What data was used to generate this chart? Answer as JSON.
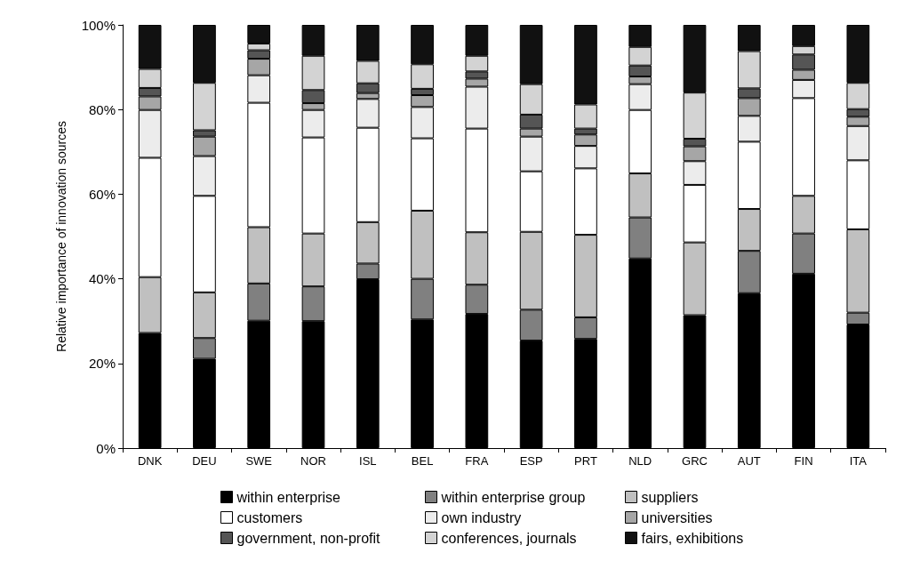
{
  "chart_data": {
    "type": "bar",
    "stacked": true,
    "ylabel": "Relative importance of innovation sources",
    "categories": [
      "DNK",
      "DEU",
      "SWE",
      "NOR",
      "ISL",
      "BEL",
      "FRA",
      "ESP",
      "PRT",
      "NLD",
      "GRC",
      "AUT",
      "FIN",
      "ITA"
    ],
    "ylim": [
      0,
      100
    ],
    "yticks": [
      {
        "value": 0,
        "label": "0%"
      },
      {
        "value": 20,
        "label": "20%"
      },
      {
        "value": 40,
        "label": "40%"
      },
      {
        "value": 60,
        "label": "60%"
      },
      {
        "value": 80,
        "label": "80%"
      },
      {
        "value": 100,
        "label": "100%"
      }
    ],
    "grid": false,
    "legend": "bottom",
    "series": [
      {
        "name": "within enterprise",
        "color": "#000000",
        "values": [
          27.2,
          21.1,
          30.1,
          30.0,
          39.9,
          30.4,
          31.7,
          25.4,
          25.8,
          44.8,
          31.4,
          36.6,
          41.2,
          29.2
        ]
      },
      {
        "name": "within enterprise group",
        "color": "#808080",
        "values": [
          null,
          4.9,
          8.8,
          8.2,
          3.7,
          9.6,
          6.9,
          7.3,
          5.1,
          9.7,
          null,
          10.0,
          9.5,
          2.8
        ]
      },
      {
        "name": "suppliers",
        "color": "#c0c0c0",
        "values": [
          13.2,
          10.8,
          13.3,
          12.5,
          9.8,
          16.1,
          12.4,
          18.4,
          19.5,
          10.4,
          17.2,
          9.9,
          8.9,
          19.7
        ]
      },
      {
        "name": "customers",
        "color": "#ffffff",
        "values": [
          28.2,
          22.8,
          29.4,
          22.7,
          22.3,
          17.1,
          24.5,
          14.3,
          15.7,
          15.0,
          13.6,
          15.9,
          23.1,
          16.3
        ]
      },
      {
        "name": "own industry",
        "color": "#ececec",
        "values": [
          11.3,
          9.4,
          6.5,
          6.5,
          6.8,
          7.4,
          9.9,
          8.2,
          5.3,
          6.1,
          5.6,
          6.1,
          4.3,
          8.1
        ]
      },
      {
        "name": "universities",
        "color": "#a6a6a6",
        "values": [
          3.2,
          4.6,
          3.9,
          1.6,
          1.4,
          2.8,
          1.9,
          1.9,
          2.7,
          1.8,
          3.5,
          4.2,
          2.4,
          2.2
        ]
      },
      {
        "name": "government, non-profit",
        "color": "#555555",
        "values": [
          2.0,
          1.5,
          2.0,
          3.1,
          2.3,
          1.5,
          1.7,
          3.3,
          1.4,
          2.6,
          1.8,
          2.3,
          3.6,
          1.8
        ]
      },
      {
        "name": "conferences, journals",
        "color": "#d3d3d3",
        "values": [
          4.5,
          11.2,
          1.6,
          8.1,
          5.3,
          5.8,
          3.7,
          7.2,
          5.7,
          4.4,
          10.9,
          8.8,
          2.0,
          6.2
        ]
      },
      {
        "name": "fairs, exhibitions",
        "color": "#111111",
        "values": [
          10.4,
          13.7,
          4.4,
          7.3,
          8.5,
          9.3,
          7.3,
          14.0,
          18.8,
          5.2,
          16.0,
          6.2,
          5.0,
          13.7
        ]
      }
    ]
  }
}
